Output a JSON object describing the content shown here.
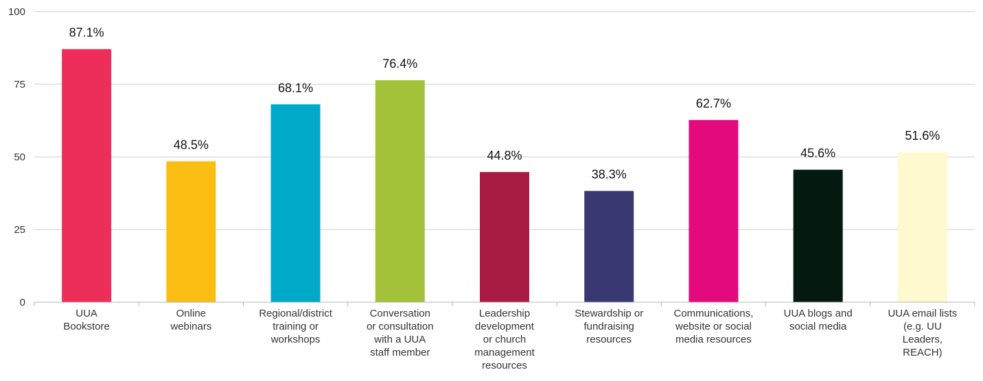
{
  "chart_data": {
    "type": "bar",
    "categories": [
      [
        "UUA",
        "Bookstore"
      ],
      [
        "Online",
        "webinars"
      ],
      [
        "Regional/district",
        "training or",
        "workshops"
      ],
      [
        "Conversation",
        "or consultation",
        "with a UUA",
        "staff member"
      ],
      [
        "Leadership",
        "development",
        "or church",
        "management",
        "resources"
      ],
      [
        "Stewardship or",
        "fundraising",
        "resources"
      ],
      [
        "Communications,",
        "website or social",
        "media resources"
      ],
      [
        "UUA blogs and",
        "social media"
      ],
      [
        "UUA email lists",
        "(e.g. UU",
        "Leaders,",
        "REACH)"
      ]
    ],
    "values": [
      87.1,
      48.5,
      68.1,
      76.4,
      44.8,
      38.3,
      62.7,
      45.6,
      51.6
    ],
    "data_labels": [
      "87.1%",
      "48.5%",
      "68.1%",
      "76.4%",
      "44.8%",
      "38.3%",
      "62.7%",
      "45.6%",
      "51.6%"
    ],
    "colors": [
      "#ee2e5a",
      "#fcbd13",
      "#00a9c8",
      "#a3c23a",
      "#a91b43",
      "#3a3870",
      "#e20a7d",
      "#041a10",
      "#fef9cf"
    ],
    "yticks": [
      "0",
      "25",
      "50",
      "75",
      "100"
    ],
    "ylim": [
      0,
      100
    ],
    "grid": true,
    "title": "",
    "xlabel": "",
    "ylabel": ""
  }
}
